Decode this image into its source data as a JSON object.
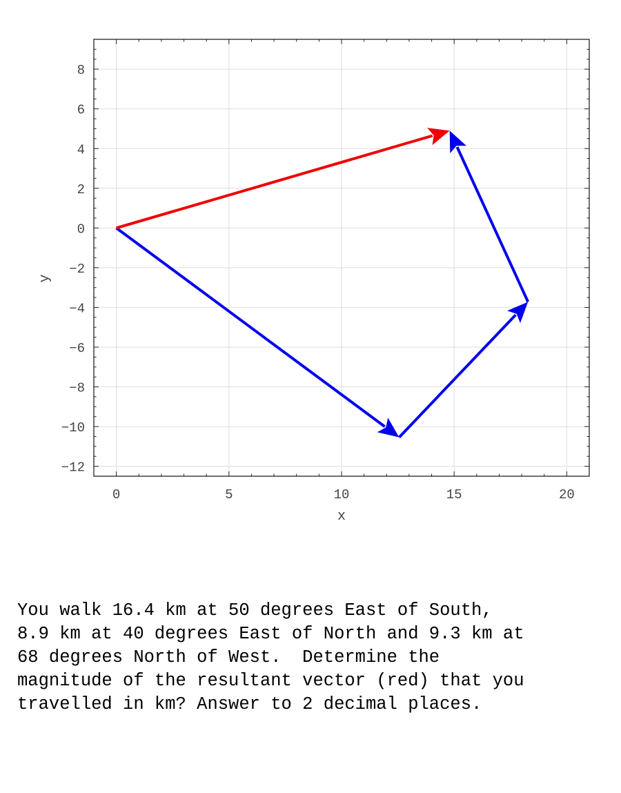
{
  "chart_data": {
    "type": "vector-diagram",
    "xlabel": "x",
    "ylabel": "y",
    "xlim": [
      -1,
      21
    ],
    "ylim": [
      -12.5,
      9.5
    ],
    "x_ticks": [
      0,
      5,
      10,
      15,
      20
    ],
    "x_tick_labels": [
      "0",
      "5",
      "10",
      "15",
      "20"
    ],
    "y_ticks": [
      8,
      6,
      4,
      2,
      0,
      -2,
      -4,
      -6,
      -8,
      -10,
      -12
    ],
    "y_tick_labels": [
      "8",
      "6",
      "4",
      "2",
      "0",
      "−2",
      "−4",
      "−6",
      "−8",
      "−10",
      "−12"
    ],
    "grid": true,
    "vectors": [
      {
        "from": [
          0,
          0
        ],
        "to": [
          12.56,
          -10.54
        ],
        "color": "#0000ee"
      },
      {
        "from": [
          12.56,
          -10.54
        ],
        "to": [
          18.28,
          -3.72
        ],
        "color": "#0000ee"
      },
      {
        "from": [
          18.28,
          -3.72
        ],
        "to": [
          14.8,
          4.9
        ],
        "color": "#0000ee"
      },
      {
        "from": [
          0,
          0
        ],
        "to": [
          14.8,
          4.9
        ],
        "color": "#ee0000"
      }
    ]
  },
  "question": "You walk 16.4 km at 50 degrees East of South,\n8.9 km at 40 degrees East of North and 9.3 km at\n68 degrees North of West.  Determine the\nmagnitude of the resultant vector (red) that you\ntravelled in km? Answer to 2 decimal places."
}
